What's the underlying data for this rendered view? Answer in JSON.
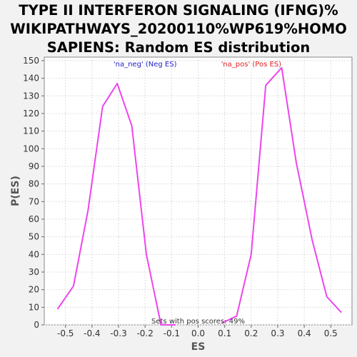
{
  "chart_data": {
    "type": "line",
    "title_lines": [
      "TYPE II INTERFERON SIGNALING (IFNG)%",
      "WIKIPATHWAYS_20200110%WP619%HOMO",
      "SAPIENS: Random ES distribution"
    ],
    "xlabel": "ES",
    "ylabel": "P(ES)",
    "xlim": [
      -0.58,
      0.58
    ],
    "ylim": [
      0,
      152
    ],
    "xticks": [
      "-0.5",
      "-0.4",
      "-0.3",
      "-0.2",
      "-0.1",
      "0.0",
      "0.1",
      "0.2",
      "0.3",
      "0.4",
      "0.5"
    ],
    "xtick_values": [
      -0.5,
      -0.4,
      -0.3,
      -0.2,
      -0.1,
      0.0,
      0.1,
      0.2,
      0.3,
      0.4,
      0.5
    ],
    "yticks": [
      "0",
      "10",
      "20",
      "30",
      "40",
      "50",
      "60",
      "70",
      "80",
      "90",
      "100",
      "110",
      "120",
      "130",
      "140",
      "150"
    ],
    "ytick_values": [
      0,
      10,
      20,
      30,
      40,
      50,
      60,
      70,
      80,
      90,
      100,
      110,
      120,
      130,
      140,
      150
    ],
    "grid": true,
    "line_color": "#ee44ee",
    "series": [
      {
        "x": [
          -0.53,
          -0.47,
          -0.415,
          -0.36,
          -0.305,
          -0.25,
          -0.195,
          -0.14,
          -0.085
        ],
        "values": [
          9,
          22,
          65,
          124,
          137,
          113,
          40,
          0,
          0
        ]
      },
      {
        "x": [
          0.09,
          0.145,
          0.2,
          0.255,
          0.315,
          0.37,
          0.43,
          0.485,
          0.54
        ],
        "values": [
          1,
          5,
          40,
          136,
          146,
          92,
          48,
          16,
          7
        ]
      }
    ],
    "annotations": {
      "neg_label": "'na_neg' (Neg ES)",
      "neg_color": "#2222cc",
      "pos_label": "'na_pos' (Pos ES)",
      "pos_color": "#dd2222",
      "footer": "Sets with pos scores: 49%"
    }
  }
}
